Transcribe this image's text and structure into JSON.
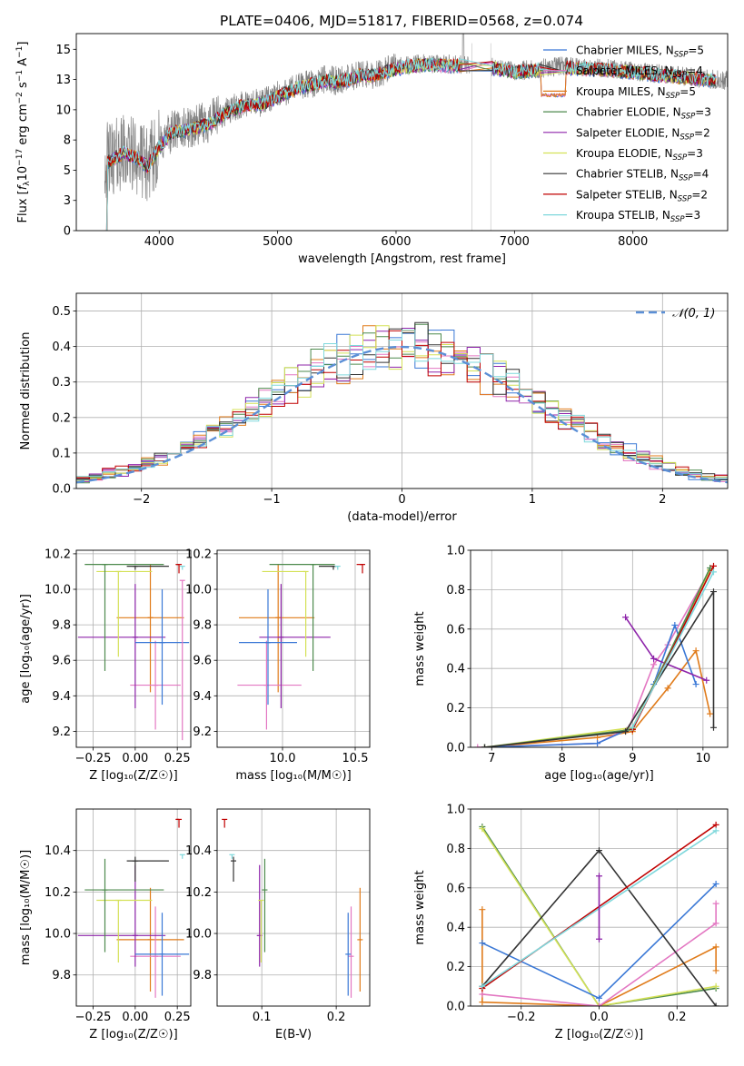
{
  "figure": {
    "title": "PLATE=0406, MJD=51817, FIBERID=0568, z=0.074"
  },
  "colors": {
    "Chabrier MILES": "#3a78d6",
    "Salpeter MILES": "#e377c2",
    "Kroupa MILES": "#e07b1a",
    "Chabrier ELODIE": "#4d8a4d",
    "Salpeter ELODIE": "#8e24aa",
    "Kroupa ELODIE": "#d4e157",
    "Chabrier STELIB": "#333333",
    "Salpeter STELIB": "#c00000",
    "Kroupa STELIB": "#7fd8dc",
    "data": "#808080",
    "normal_curve": "#5b8fd6",
    "grid": "#b0b0b0"
  },
  "chart_data": [
    {
      "id": "spectrum",
      "type": "line",
      "title": "PLATE=0406, MJD=51817, FIBERID=0568, z=0.074",
      "xlabel": "wavelength [Angstrom, rest frame]",
      "ylabel_parts": [
        "Flux [",
        "f",
        "λ",
        "10",
        "−17",
        " erg cm",
        "−2",
        " s",
        "−1",
        " A",
        "−1",
        "]"
      ],
      "xlim": [
        3300,
        8800
      ],
      "ylim": [
        0,
        16.3
      ],
      "xticks": [
        4000,
        5000,
        6000,
        7000,
        8000
      ],
      "yticks": [
        0.0,
        2.5,
        5.0,
        7.5,
        10.0,
        12.5,
        15.0
      ],
      "grid": false,
      "legend_position": "top-right",
      "legend": [
        {
          "name": "Chabrier MILES",
          "sub": "SSP",
          "n": "5"
        },
        {
          "name": "Salpeter MILES",
          "sub": "SSP",
          "n": "4"
        },
        {
          "name": "Kroupa MILES",
          "sub": "SSP",
          "n": "5"
        },
        {
          "name": "Chabrier ELODIE",
          "sub": "SSP",
          "n": "3"
        },
        {
          "name": "Salpeter ELODIE",
          "sub": "SSP",
          "n": "2"
        },
        {
          "name": "Kroupa ELODIE",
          "sub": "SSP",
          "n": "3"
        },
        {
          "name": "Chabrier STELIB",
          "sub": "SSP",
          "n": "4"
        },
        {
          "name": "Salpeter STELIB",
          "sub": "SSP",
          "n": "2"
        },
        {
          "name": "Kroupa STELIB",
          "sub": "SSP",
          "n": "3"
        }
      ],
      "continuum": {
        "x": [
          3500,
          3600,
          3700,
          3800,
          3900,
          4000,
          4100,
          4200,
          4300,
          4400,
          4500,
          4600,
          4700,
          4800,
          4900,
          5000,
          5100,
          5200,
          5300,
          5400,
          5500,
          5600,
          5700,
          5800,
          5900,
          6000,
          6200,
          6400,
          6600,
          6800,
          7000,
          7200,
          7400,
          7600,
          7800,
          8000,
          8200,
          8400,
          8600,
          8800
        ],
        "y": [
          5.5,
          6.0,
          6.5,
          6.2,
          5.4,
          7.0,
          8.2,
          8.4,
          8.6,
          8.9,
          9.4,
          10.0,
          10.4,
          10.5,
          10.7,
          11.2,
          11.6,
          12.0,
          12.2,
          12.5,
          12.4,
          12.6,
          13.0,
          12.9,
          13.2,
          13.5,
          13.8,
          13.8,
          13.7,
          13.6,
          13.2,
          13.4,
          13.6,
          13.5,
          13.4,
          13.2,
          13.0,
          12.8,
          12.6,
          12.4
        ]
      },
      "gaps": [
        [
          6540,
          6810
        ],
        [
          7220,
          7430
        ]
      ]
    },
    {
      "id": "residuals",
      "type": "histogram",
      "xlabel": "(data-model)/error",
      "ylabel": "Normed distribution",
      "xlim": [
        -2.5,
        2.5
      ],
      "ylim": [
        0,
        0.55
      ],
      "xticks": [
        -2,
        -1,
        0,
        1,
        2
      ],
      "yticks": [
        0.0,
        0.1,
        0.2,
        0.3,
        0.4,
        0.5
      ],
      "grid": true,
      "legend_position": "top-right",
      "legend": [
        "𝒩(0, 1)"
      ]
    },
    {
      "id": "age_vs_z",
      "type": "errorbar",
      "xlabel": "Z [log₁₀(Z/Z☉)]",
      "ylabel": "age  [log₁₀(age/yr)]",
      "xlim": [
        -0.35,
        0.33
      ],
      "ylim": [
        9.11,
        10.22
      ],
      "xticks": [
        -0.25,
        0.0,
        0.25
      ],
      "yticks": [
        9.2,
        9.4,
        9.6,
        9.8,
        10.0,
        10.2
      ],
      "grid": true,
      "points": [
        {
          "model": "Kroupa MILES",
          "x": 0.09,
          "xerr": [
            0.2,
            0.2
          ],
          "y": 9.84,
          "yerr": [
            0.42,
            0.3
          ]
        },
        {
          "model": "Salpeter MILES",
          "x": 0.12,
          "xerr": [
            0.15,
            0.15
          ],
          "y": 9.46,
          "yerr": [
            0.25,
            0.25
          ]
        },
        {
          "model": "Salpeter ELODIE",
          "x": 0.0,
          "xerr": [
            0.34,
            0.18
          ],
          "y": 9.73,
          "yerr": [
            0.4,
            0.3
          ]
        },
        {
          "model": "Chabrier MILES",
          "x": 0.16,
          "xerr": [
            0.16,
            0.16
          ],
          "y": 9.7,
          "yerr": [
            0.35,
            0.3
          ]
        },
        {
          "model": "Kroupa ELODIE",
          "x": -0.1,
          "xerr": [
            0.13,
            0.2
          ],
          "y": 10.1,
          "yerr": [
            0.48,
            0.0
          ]
        },
        {
          "model": "Chabrier ELODIE",
          "x": -0.18,
          "xerr": [
            0.12,
            0.35
          ],
          "y": 10.14,
          "yerr": [
            0.6,
            0.0
          ]
        },
        {
          "model": "Chabrier STELIB",
          "x": 0.0,
          "xerr": [
            0.05,
            0.2
          ],
          "y": 10.13,
          "yerr": [
            0.02,
            0.0
          ]
        },
        {
          "model": "Kroupa STELIB",
          "x": 0.28,
          "xerr": [
            0.0,
            0.0
          ],
          "y": 10.13,
          "yerr": [
            0.02,
            0.0
          ]
        },
        {
          "model": "Salpeter STELIB",
          "x": 0.26,
          "xerr": [
            0.02,
            0.0
          ],
          "y": 10.14,
          "yerr": [
            0.05,
            0.0
          ]
        },
        {
          "model": "Salpeter MILES",
          "x": 0.28,
          "xerr": [
            0.0,
            0.0
          ],
          "y": 10.05,
          "yerr": [
            0.9,
            0.0
          ]
        }
      ]
    },
    {
      "id": "age_vs_mass",
      "type": "errorbar",
      "xlabel": "mass [log₁₀(M/M☉)]",
      "ylabel": "",
      "xlim": [
        9.55,
        10.6
      ],
      "ylim": [
        9.11,
        10.22
      ],
      "xticks": [
        10.0,
        10.5
      ],
      "yticks": [
        9.2,
        9.4,
        9.6,
        9.8,
        10.0,
        10.2
      ],
      "grid": true,
      "points": [
        {
          "model": "Kroupa MILES",
          "x": 9.97,
          "xerr": [
            0.27,
            0.25
          ],
          "y": 9.84,
          "yerr": [
            0.42,
            0.3
          ]
        },
        {
          "model": "Salpeter MILES",
          "x": 9.89,
          "xerr": [
            0.2,
            0.24
          ],
          "y": 9.46,
          "yerr": [
            0.25,
            0.25
          ]
        },
        {
          "model": "Salpeter ELODIE",
          "x": 9.99,
          "xerr": [
            0.15,
            0.34
          ],
          "y": 9.73,
          "yerr": [
            0.4,
            0.3
          ]
        },
        {
          "model": "Chabrier MILES",
          "x": 9.9,
          "xerr": [
            0.2,
            0.2
          ],
          "y": 9.7,
          "yerr": [
            0.35,
            0.3
          ]
        },
        {
          "model": "Kroupa ELODIE",
          "x": 10.16,
          "xerr": [
            0.3,
            0.0
          ],
          "y": 10.1,
          "yerr": [
            0.48,
            0.0
          ]
        },
        {
          "model": "Chabrier ELODIE",
          "x": 10.21,
          "xerr": [
            0.3,
            0.15
          ],
          "y": 10.14,
          "yerr": [
            0.6,
            0.0
          ]
        },
        {
          "model": "Chabrier STELIB",
          "x": 10.35,
          "xerr": [
            0.1,
            0.02
          ],
          "y": 10.13,
          "yerr": [
            0.02,
            0.0
          ]
        },
        {
          "model": "Kroupa STELIB",
          "x": 10.38,
          "xerr": [
            0.02,
            0.0
          ],
          "y": 10.13,
          "yerr": [
            0.02,
            0.0
          ]
        },
        {
          "model": "Salpeter STELIB",
          "x": 10.55,
          "xerr": [
            0.04,
            0.0
          ],
          "y": 10.14,
          "yerr": [
            0.05,
            0.0
          ]
        }
      ]
    },
    {
      "id": "weight_vs_age",
      "type": "line",
      "xlabel": "age  [log₁₀(age/yr)]",
      "ylabel": "mass weight",
      "xlim": [
        6.7,
        10.35
      ],
      "ylim": [
        0,
        1.0
      ],
      "xticks": [
        7,
        8,
        9,
        10
      ],
      "yticks": [
        0.0,
        0.2,
        0.4,
        0.6,
        0.8,
        1.0
      ],
      "grid": true,
      "series": [
        {
          "model": "Kroupa MILES",
          "x": [
            6.9,
            8.5,
            9.0,
            9.5,
            9.9,
            10.1
          ],
          "y": [
            0.0,
            0.05,
            0.08,
            0.3,
            0.49,
            0.17
          ]
        },
        {
          "model": "Salpeter MILES",
          "x": [
            6.8,
            8.5,
            8.95,
            9.3,
            9.5,
            10.1
          ],
          "y": [
            0.0,
            0.02,
            0.1,
            0.42,
            0.52,
            0.9
          ]
        },
        {
          "model": "Chabrier MILES",
          "x": [
            6.9,
            8.5,
            9.0,
            9.3,
            9.6,
            9.9
          ],
          "y": [
            0.0,
            0.02,
            0.1,
            0.32,
            0.62,
            0.32
          ]
        },
        {
          "model": "Salpeter ELODIE",
          "x": [
            8.9,
            9.3,
            10.05
          ],
          "y": [
            0.66,
            0.45,
            0.34
          ]
        },
        {
          "model": "Kroupa ELODIE",
          "x": [
            6.9,
            9.0,
            10.1
          ],
          "y": [
            0.0,
            0.1,
            0.9
          ]
        },
        {
          "model": "Chabrier ELODIE",
          "x": [
            6.9,
            9.0,
            10.1
          ],
          "y": [
            0.0,
            0.09,
            0.91
          ]
        },
        {
          "model": "Chabrier STELIB",
          "x": [
            6.9,
            8.9,
            10.15,
            10.15
          ],
          "y": [
            0.0,
            0.08,
            0.79,
            0.1
          ]
        },
        {
          "model": "Salpeter STELIB",
          "x": [
            9.0,
            10.15
          ],
          "y": [
            0.09,
            0.92
          ]
        },
        {
          "model": "Kroupa STELIB",
          "x": [
            9.0,
            10.15
          ],
          "y": [
            0.1,
            0.89
          ]
        }
      ]
    },
    {
      "id": "mass_vs_z",
      "type": "errorbar",
      "xlabel": "Z [log₁₀(Z/Z☉)]",
      "ylabel": "mass [log₁₀(M/M☉)]",
      "xlim": [
        -0.35,
        0.33
      ],
      "ylim": [
        9.65,
        10.6
      ],
      "xticks": [
        -0.25,
        0.0,
        0.25
      ],
      "yticks": [
        9.8,
        10.0,
        10.2,
        10.4
      ],
      "grid": true,
      "points": [
        {
          "model": "Kroupa MILES",
          "x": 0.09,
          "xerr": [
            0.2,
            0.2
          ],
          "y": 9.97,
          "yerr": [
            0.25,
            0.25
          ]
        },
        {
          "model": "Salpeter MILES",
          "x": 0.12,
          "xerr": [
            0.15,
            0.15
          ],
          "y": 9.89,
          "yerr": [
            0.2,
            0.24
          ]
        },
        {
          "model": "Salpeter ELODIE",
          "x": 0.0,
          "xerr": [
            0.34,
            0.18
          ],
          "y": 9.99,
          "yerr": [
            0.15,
            0.34
          ]
        },
        {
          "model": "Chabrier MILES",
          "x": 0.16,
          "xerr": [
            0.16,
            0.16
          ],
          "y": 9.9,
          "yerr": [
            0.2,
            0.2
          ]
        },
        {
          "model": "Kroupa ELODIE",
          "x": -0.1,
          "xerr": [
            0.13,
            0.2
          ],
          "y": 10.16,
          "yerr": [
            0.3,
            0.0
          ]
        },
        {
          "model": "Chabrier ELODIE",
          "x": -0.18,
          "xerr": [
            0.12,
            0.35
          ],
          "y": 10.21,
          "yerr": [
            0.3,
            0.15
          ]
        },
        {
          "model": "Chabrier STELIB",
          "x": 0.0,
          "xerr": [
            0.05,
            0.2
          ],
          "y": 10.35,
          "yerr": [
            0.1,
            0.02
          ]
        },
        {
          "model": "Kroupa STELIB",
          "x": 0.28,
          "xerr": [
            0.0,
            0.0
          ],
          "y": 10.38,
          "yerr": [
            0.02,
            0.0
          ]
        },
        {
          "model": "Salpeter STELIB",
          "x": 0.26,
          "xerr": [
            0.02,
            0.0
          ],
          "y": 10.55,
          "yerr": [
            0.04,
            0.0
          ]
        }
      ]
    },
    {
      "id": "mass_vs_ebv",
      "type": "errorbar",
      "xlabel": "E(B-V)",
      "ylabel": "",
      "xlim": [
        0.04,
        0.245
      ],
      "ylim": [
        9.65,
        10.6
      ],
      "xticks": [
        0.1,
        0.2
      ],
      "yticks": [
        9.8,
        10.0,
        10.2,
        10.4
      ],
      "grid": true,
      "points": [
        {
          "model": "Kroupa MILES",
          "x": 0.232,
          "xerr": [
            0.0,
            0.0
          ],
          "y": 9.97,
          "yerr": [
            0.25,
            0.25
          ]
        },
        {
          "model": "Salpeter MILES",
          "x": 0.22,
          "xerr": [
            0.0,
            0.0
          ],
          "y": 9.89,
          "yerr": [
            0.2,
            0.24
          ]
        },
        {
          "model": "Chabrier MILES",
          "x": 0.216,
          "xerr": [
            0.0,
            0.0
          ],
          "y": 9.9,
          "yerr": [
            0.2,
            0.2
          ]
        },
        {
          "model": "Salpeter ELODIE",
          "x": 0.097,
          "xerr": [
            0.0,
            0.0
          ],
          "y": 9.99,
          "yerr": [
            0.15,
            0.34
          ]
        },
        {
          "model": "Kroupa ELODIE",
          "x": 0.099,
          "xerr": [
            0.0,
            0.0
          ],
          "y": 10.16,
          "yerr": [
            0.3,
            0.0
          ]
        },
        {
          "model": "Chabrier ELODIE",
          "x": 0.104,
          "xerr": [
            0.0,
            0.0
          ],
          "y": 10.21,
          "yerr": [
            0.3,
            0.15
          ]
        },
        {
          "model": "Chabrier STELIB",
          "x": 0.062,
          "xerr": [
            0.0,
            0.0
          ],
          "y": 10.35,
          "yerr": [
            0.1,
            0.02
          ]
        },
        {
          "model": "Kroupa STELIB",
          "x": 0.06,
          "xerr": [
            0.0,
            0.0
          ],
          "y": 10.38,
          "yerr": [
            0.02,
            0.0
          ]
        },
        {
          "model": "Salpeter STELIB",
          "x": 0.05,
          "xerr": [
            0.0,
            0.0
          ],
          "y": 10.55,
          "yerr": [
            0.04,
            0.0
          ]
        }
      ]
    },
    {
      "id": "weight_vs_z",
      "type": "line",
      "xlabel": "Z [log₁₀(Z/Z☉)]",
      "ylabel": "mass weight",
      "xlim": [
        -0.33,
        0.33
      ],
      "ylim": [
        0,
        1.0
      ],
      "xticks": [
        -0.2,
        0.0,
        0.2
      ],
      "yticks": [
        0.0,
        0.2,
        0.4,
        0.6,
        0.8,
        1.0
      ],
      "grid": true,
      "series": [
        {
          "model": "Chabrier ELODIE",
          "x": [
            -0.3,
            0.0,
            0.3
          ],
          "y": [
            0.91,
            0.0,
            0.09
          ]
        },
        {
          "model": "Kroupa ELODIE",
          "x": [
            -0.3,
            0.0,
            0.3
          ],
          "y": [
            0.9,
            0.0,
            0.1
          ]
        },
        {
          "model": "Kroupa MILES",
          "x": [
            -0.3,
            -0.3,
            0.0,
            0.3,
            0.3
          ],
          "y": [
            0.49,
            0.02,
            0.0,
            0.3,
            0.18
          ]
        },
        {
          "model": "Chabrier MILES",
          "x": [
            -0.3,
            0.0,
            0.3
          ],
          "y": [
            0.32,
            0.04,
            0.62
          ]
        },
        {
          "model": "Salpeter MILES",
          "x": [
            -0.3,
            0.0,
            0.3,
            0.3
          ],
          "y": [
            0.06,
            0.0,
            0.42,
            0.52
          ]
        },
        {
          "model": "Chabrier STELIB",
          "x": [
            -0.3,
            0.0,
            0.3
          ],
          "y": [
            0.1,
            0.79,
            0.0
          ]
        },
        {
          "model": "Salpeter STELIB",
          "x": [
            -0.3,
            0.3
          ],
          "y": [
            0.09,
            0.92
          ]
        },
        {
          "model": "Kroupa STELIB",
          "x": [
            -0.3,
            0.3
          ],
          "y": [
            0.1,
            0.89
          ]
        },
        {
          "model": "Salpeter ELODIE",
          "x": [
            0.0,
            0.0
          ],
          "y": [
            0.34,
            0.66
          ]
        }
      ]
    }
  ]
}
